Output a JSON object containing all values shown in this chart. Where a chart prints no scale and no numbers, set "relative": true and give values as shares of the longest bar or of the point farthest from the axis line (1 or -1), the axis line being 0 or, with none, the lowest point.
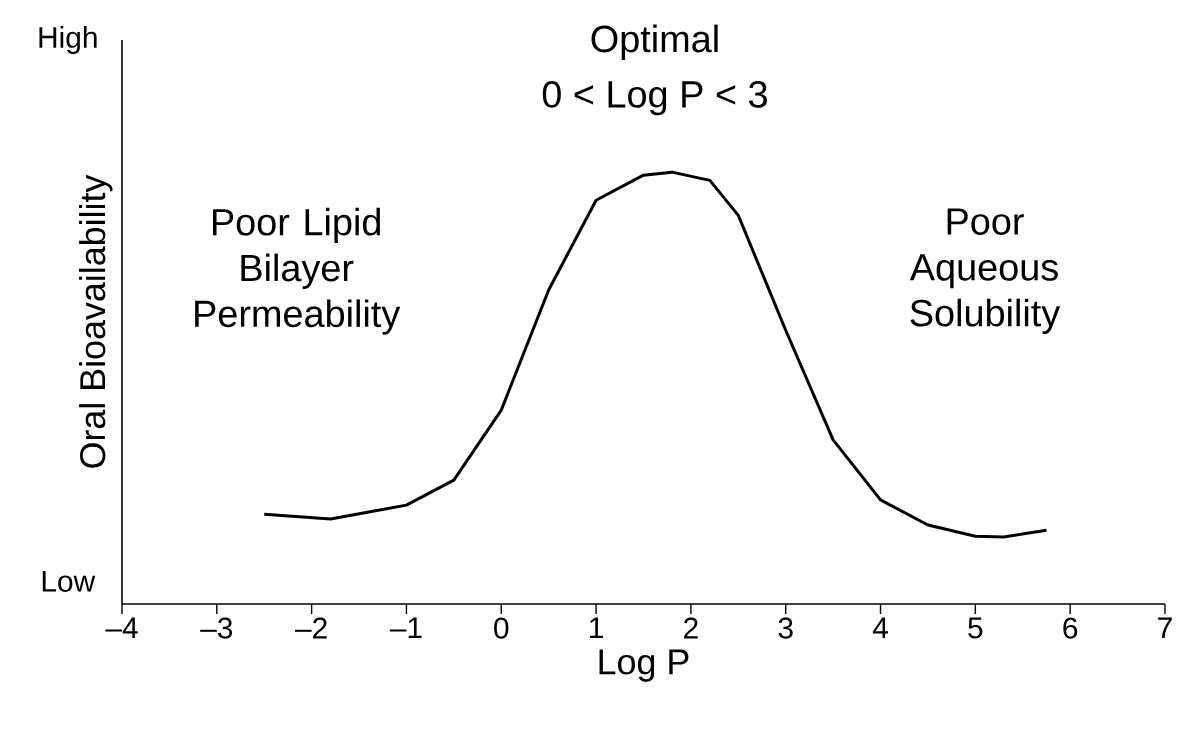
{
  "chart_data": {
    "type": "line",
    "relative": true,
    "xlabel": "Log P",
    "ylabel": "Oral Bioavailability",
    "color": "#000000",
    "x": [
      -2.5,
      -1.8,
      -1,
      -0.5,
      0,
      0.5,
      1,
      1.5,
      1.8,
      2.2,
      2.5,
      3,
      3.5,
      4,
      4.5,
      5,
      5.3,
      5.75
    ],
    "values": [
      0.208,
      0.197,
      0.229,
      0.287,
      0.449,
      0.727,
      0.935,
      0.993,
      1,
      0.981,
      0.9,
      0.634,
      0.38,
      0.241,
      0.183,
      0.157,
      0.155,
      0.171
    ],
    "xlim": [
      -4,
      7
    ],
    "xticks": [
      {
        "value": -4,
        "label": "–4"
      },
      {
        "value": -3,
        "label": "–3"
      },
      {
        "value": -2,
        "label": "–2"
      },
      {
        "value": -1,
        "label": "–1"
      },
      0,
      1,
      2,
      3,
      4,
      5,
      6,
      7
    ],
    "grid": false,
    "marker": "none",
    "line_style": "solid",
    "annotations": [
      "High",
      "Low",
      "Optimal",
      "0 < Log P < 3",
      "Poor Lipid Bilayer Permeability",
      "Poor Aqueous Solubility"
    ]
  }
}
